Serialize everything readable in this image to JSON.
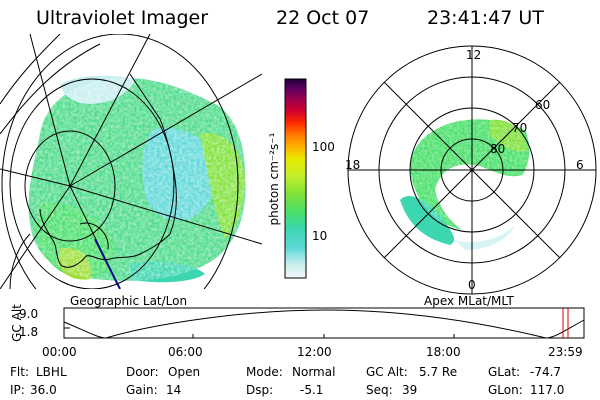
{
  "header": {
    "instrument": "Ultraviolet Imager",
    "date": "22 Oct 07",
    "time": "23:41:47 UT"
  },
  "panels": {
    "left_label": "Geographic Lat/Lon",
    "right_label": "Apex MLat/MLT"
  },
  "colorbar": {
    "unit_label": "photon cm⁻²s⁻¹",
    "ticks": [
      "100",
      "10"
    ],
    "colors": [
      "#f4f4f4",
      "#c8eef0",
      "#5fd8d8",
      "#3cd7b0",
      "#49e06a",
      "#7fe23a",
      "#c6f028",
      "#e8e800",
      "#ffb000",
      "#ff7a00",
      "#ff2a00",
      "#d0002a",
      "#9a0050",
      "#600060",
      "#20003a"
    ]
  },
  "polar_labels": {
    "mlt": [
      "12",
      "18",
      "6",
      "0"
    ],
    "mlat": [
      "60",
      "70",
      "80"
    ]
  },
  "altitude_plot": {
    "ylabel": "GC Alt",
    "y_ticks": [
      "9.0",
      "1.8"
    ],
    "x_ticks": [
      "00:00",
      "06:00",
      "12:00",
      "18:00",
      "23:59"
    ]
  },
  "status": {
    "row1": [
      {
        "label": "Flt:",
        "value": "LBHL"
      },
      {
        "label": "Door:",
        "value": "Open"
      },
      {
        "label": "Mode:",
        "value": "Normal"
      },
      {
        "label": "GC Alt:",
        "value": "5.7 Re"
      },
      {
        "label": "GLat:",
        "value": "-74.7"
      }
    ],
    "row2": [
      {
        "label": "IP:",
        "value": "36.0"
      },
      {
        "label": "Gain:",
        "value": "14"
      },
      {
        "label": "Dsp:",
        "value": "-5.1"
      },
      {
        "label": "Seq:",
        "value": "39"
      },
      {
        "label": "GLon:",
        "value": "117.0"
      }
    ]
  }
}
